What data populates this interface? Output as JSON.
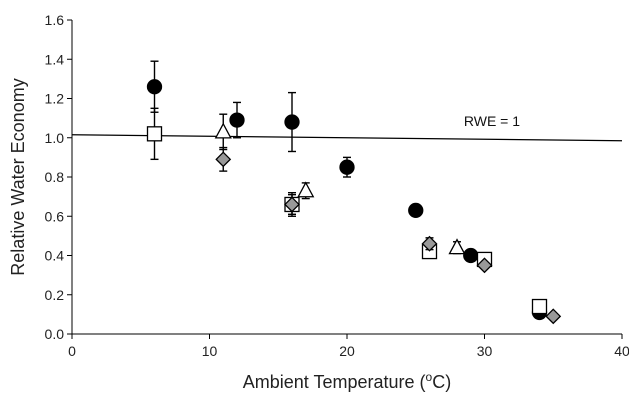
{
  "chart_data": {
    "type": "scatter",
    "title": "",
    "xlabel_main": "Ambient Temperature (",
    "xlabel_sup": "o",
    "xlabel_end": "C)",
    "ylabel": "Relative Water Economy",
    "xlim": [
      0,
      40
    ],
    "ylim": [
      0.0,
      1.6
    ],
    "x_ticks": [
      0,
      10,
      20,
      30,
      40
    ],
    "y_ticks": [
      0.0,
      0.2,
      0.4,
      0.6,
      0.8,
      1.0,
      1.2,
      1.4,
      1.6
    ],
    "x_tick_labels": [
      "0",
      "10",
      "20",
      "30",
      "40"
    ],
    "y_tick_labels": [
      "0.0",
      "0.2",
      "0.4",
      "0.6",
      "0.8",
      "1.0",
      "1.2",
      "1.4",
      "1.6"
    ],
    "grid": false,
    "legend": "none",
    "reference_line": {
      "y": 1.0,
      "x_range": [
        0,
        40
      ],
      "label": "RWE = 1",
      "label_x": 28.5
    },
    "series": [
      {
        "marker": "circle",
        "fill": "#000000",
        "stroke": "#000000",
        "points": [
          {
            "x": 6,
            "y": 1.26,
            "err": 0.13
          },
          {
            "x": 12,
            "y": 1.09,
            "err": 0.09
          },
          {
            "x": 16,
            "y": 1.08,
            "err": 0.15
          },
          {
            "x": 20,
            "y": 0.85,
            "err": 0.05
          },
          {
            "x": 25,
            "y": 0.63,
            "err": 0.0
          },
          {
            "x": 29,
            "y": 0.4,
            "err": 0.0
          },
          {
            "x": 34,
            "y": 0.11,
            "err": 0.0
          }
        ]
      },
      {
        "marker": "square",
        "fill": "#ffffff",
        "stroke": "#000000",
        "points": [
          {
            "x": 6,
            "y": 1.02,
            "err": 0.13
          },
          {
            "x": 16,
            "y": 0.66,
            "err": 0.06
          },
          {
            "x": 26,
            "y": 0.42,
            "err": 0.0
          },
          {
            "x": 30,
            "y": 0.38,
            "err": 0.0
          },
          {
            "x": 34,
            "y": 0.14,
            "err": 0.0
          }
        ]
      },
      {
        "marker": "triangle",
        "fill": "#ffffff",
        "stroke": "#000000",
        "points": [
          {
            "x": 11,
            "y": 1.03,
            "err": 0.09
          },
          {
            "x": 17,
            "y": 0.73,
            "err": 0.04
          },
          {
            "x": 28,
            "y": 0.44,
            "err": 0.03
          }
        ]
      },
      {
        "marker": "diamond",
        "fill": "#999999",
        "stroke": "#000000",
        "points": [
          {
            "x": 11,
            "y": 0.89,
            "err": 0.06
          },
          {
            "x": 16,
            "y": 0.66,
            "err": 0.05
          },
          {
            "x": 26,
            "y": 0.46,
            "err": 0.03
          },
          {
            "x": 30,
            "y": 0.35,
            "err": 0.0
          },
          {
            "x": 35,
            "y": 0.09,
            "err": 0.0
          }
        ]
      }
    ]
  }
}
